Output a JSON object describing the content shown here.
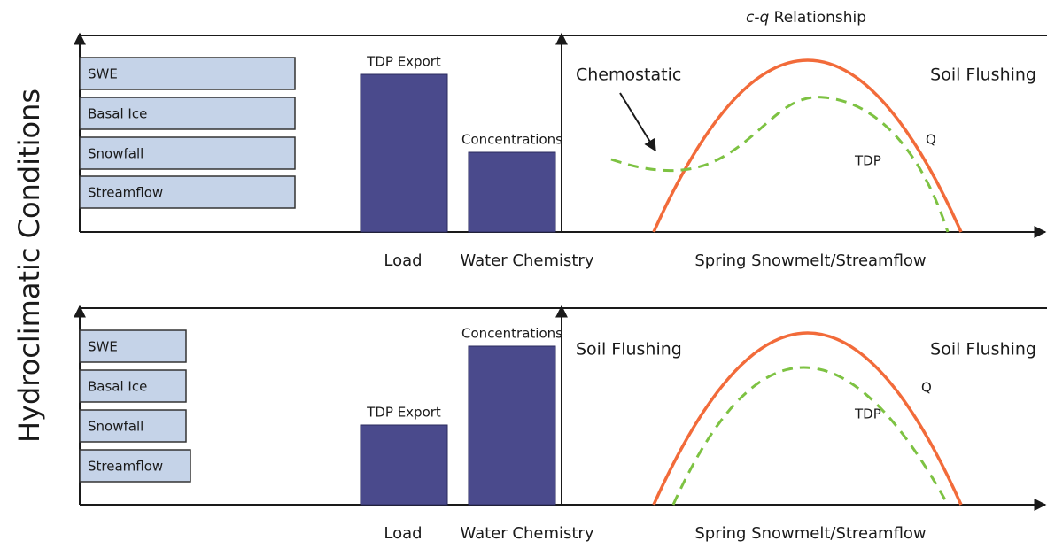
{
  "y_axis_title": "Hydroclimatic Conditions",
  "cq_title": {
    "italic": "c-q",
    "rest": "Relationship"
  },
  "panels": [
    {
      "conditions": [
        "SWE",
        "Basal Ice",
        "Snowfall",
        "Streamflow"
      ],
      "bars": [
        "TDP Export",
        "Concentrations"
      ],
      "x_labels": [
        "Load",
        "Water Chemistry"
      ],
      "cq_left": "Chemostatic",
      "cq_right": "Soil Flushing",
      "curve_labels": [
        "Q",
        "TDP"
      ],
      "cq_x_label": "Spring Snowmelt/Streamflow"
    },
    {
      "conditions": [
        "SWE",
        "Basal Ice",
        "Snowfall",
        "Streamflow"
      ],
      "bars": [
        "TDP Export",
        "Concentrations"
      ],
      "x_labels": [
        "Load",
        "Water Chemistry"
      ],
      "cq_left": "Soil Flushing",
      "cq_right": "Soil Flushing",
      "curve_labels": [
        "Q",
        "TDP"
      ],
      "cq_x_label": "Spring Snowmelt/Streamflow"
    }
  ]
}
